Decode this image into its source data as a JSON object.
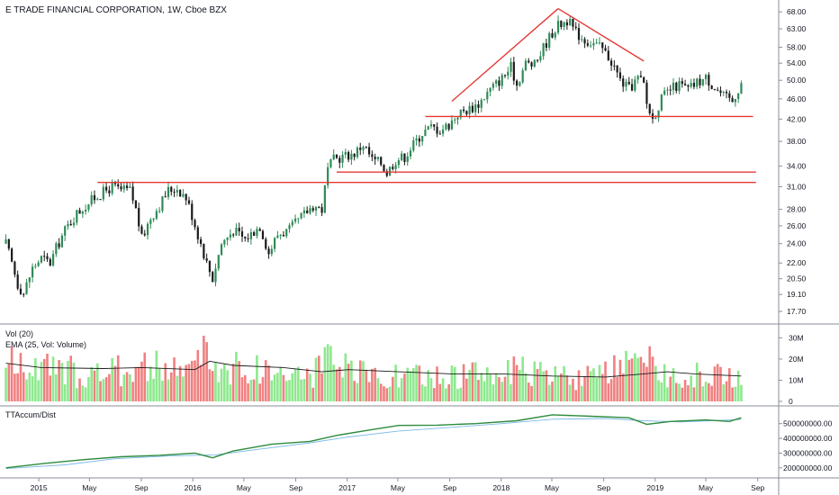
{
  "chart_data": [
    {
      "type": "candlestick",
      "title": "E TRADE FINANCIAL CORPORATION, 1W, Cboe BZX",
      "y_scale": "log",
      "ylim": [
        17.0,
        70.0
      ],
      "y_ticks": [
        "68.00",
        "63.00",
        "58.00",
        "54.00",
        "50.00",
        "46.00",
        "42.00",
        "38.00",
        "34.00",
        "31.00",
        "28.00",
        "26.00",
        "24.00",
        "22.00",
        "20.50",
        "19.10",
        "17.70"
      ],
      "x_ticks": [
        "2015",
        "May",
        "Sep",
        "2016",
        "May",
        "Sep",
        "2017",
        "May",
        "Sep",
        "2018",
        "May",
        "Sep",
        "2019",
        "May",
        "Sep"
      ],
      "price_path": [
        [
          "2014-10-15",
          24.0
        ],
        [
          "2014-10-29",
          22.0
        ],
        [
          "2014-11-12",
          20.0
        ],
        [
          "2014-11-26",
          19.2
        ],
        [
          "2014-12-17",
          21.5
        ],
        [
          "2015-01-07",
          22.5
        ],
        [
          "2015-01-28",
          22.0
        ],
        [
          "2015-02-11",
          23.5
        ],
        [
          "2015-03-04",
          25.5
        ],
        [
          "2015-04-01",
          27.5
        ],
        [
          "2015-04-22",
          28.5
        ],
        [
          "2015-05-13",
          29.5
        ],
        [
          "2015-06-10",
          30.5
        ],
        [
          "2015-06-24",
          31.0
        ],
        [
          "2015-07-15",
          30.5
        ],
        [
          "2015-08-05",
          30.5
        ],
        [
          "2015-08-19",
          28.0
        ],
        [
          "2015-09-02",
          24.5
        ],
        [
          "2015-09-23",
          27.0
        ],
        [
          "2015-10-14",
          28.5
        ],
        [
          "2015-11-04",
          30.5
        ],
        [
          "2015-11-25",
          30.8
        ],
        [
          "2015-12-16",
          29.5
        ],
        [
          "2016-01-13",
          25.0
        ],
        [
          "2016-02-03",
          22.0
        ],
        [
          "2016-02-17",
          20.5
        ],
        [
          "2016-03-09",
          24.0
        ],
        [
          "2016-04-06",
          25.5
        ],
        [
          "2016-05-04",
          24.5
        ],
        [
          "2016-06-08",
          26.0
        ],
        [
          "2016-06-29",
          23.0
        ],
        [
          "2016-07-20",
          25.0
        ],
        [
          "2016-08-17",
          25.5
        ],
        [
          "2016-09-14",
          27.0
        ],
        [
          "2016-10-12",
          28.5
        ],
        [
          "2016-11-02",
          28.0
        ],
        [
          "2016-11-16",
          33.5
        ],
        [
          "2016-11-30",
          35.0
        ],
        [
          "2016-12-21",
          35.5
        ],
        [
          "2017-01-18",
          36.0
        ],
        [
          "2017-02-08",
          37.5
        ],
        [
          "2017-03-01",
          35.0
        ],
        [
          "2017-03-22",
          34.5
        ],
        [
          "2017-04-05",
          33.0
        ],
        [
          "2017-04-26",
          35.0
        ],
        [
          "2017-05-17",
          35.5
        ],
        [
          "2017-06-07",
          37.5
        ],
        [
          "2017-06-28",
          39.5
        ],
        [
          "2017-07-19",
          40.5
        ],
        [
          "2017-08-09",
          40.0
        ],
        [
          "2017-08-30",
          41.0
        ],
        [
          "2017-09-20",
          43.0
        ],
        [
          "2017-10-18",
          44.0
        ],
        [
          "2017-11-08",
          45.0
        ],
        [
          "2017-12-06",
          48.0
        ],
        [
          "2018-01-03",
          50.5
        ],
        [
          "2018-01-24",
          53.0
        ],
        [
          "2018-02-07",
          49.0
        ],
        [
          "2018-02-28",
          54.0
        ],
        [
          "2018-03-21",
          53.5
        ],
        [
          "2018-04-11",
          58.0
        ],
        [
          "2018-05-02",
          62.0
        ],
        [
          "2018-05-16",
          64.0
        ],
        [
          "2018-06-06",
          65.5
        ],
        [
          "2018-06-27",
          62.0
        ],
        [
          "2018-07-18",
          60.0
        ],
        [
          "2018-08-08",
          59.0
        ],
        [
          "2018-08-29",
          57.5
        ],
        [
          "2018-09-19",
          54.5
        ],
        [
          "2018-10-10",
          50.0
        ],
        [
          "2018-10-31",
          48.0
        ],
        [
          "2018-11-21",
          50.5
        ],
        [
          "2018-12-05",
          49.0
        ],
        [
          "2018-12-12",
          45.0
        ],
        [
          "2018-12-26",
          42.0
        ],
        [
          "2019-01-16",
          46.0
        ],
        [
          "2019-02-06",
          48.0
        ],
        [
          "2019-02-27",
          49.0
        ],
        [
          "2019-03-20",
          48.0
        ],
        [
          "2019-04-10",
          49.5
        ],
        [
          "2019-05-01",
          50.5
        ],
        [
          "2019-05-22",
          48.5
        ],
        [
          "2019-06-12",
          46.5
        ],
        [
          "2019-07-03",
          45.5
        ],
        [
          "2019-07-24",
          49.5
        ]
      ],
      "drawings": [
        {
          "kind": "line",
          "from": [
            "2017-09-06",
            45.5
          ],
          "to": [
            "2018-05-16",
            69.0
          ]
        },
        {
          "kind": "line",
          "from": [
            "2018-05-16",
            69.0
          ],
          "to": [
            "2018-12-05",
            54.5
          ]
        },
        {
          "kind": "horizontal",
          "from": "2015-05-20",
          "to": "2019-08-28",
          "value": 31.6
        },
        {
          "kind": "horizontal",
          "from": "2016-12-07",
          "to": "2019-08-28",
          "value": 33.1
        },
        {
          "kind": "horizontal",
          "from": "2017-07-05",
          "to": "2019-08-21",
          "value": 42.5
        }
      ],
      "bull_color": "#2e8b57",
      "bear_color": "#1b1b1b",
      "drawing_color": "#e53935"
    },
    {
      "type": "bar",
      "labels": [
        "Vol (20)",
        "EMA (25, Vol: Volume)"
      ],
      "ylim": [
        0,
        34
      ],
      "y_ticks": [
        "30M",
        "20M",
        "10M",
        "0"
      ],
      "volume_path_M": [
        [
          "2014-10-15",
          18
        ],
        [
          "2015-01-07",
          15
        ],
        [
          "2015-06-03",
          13
        ],
        [
          "2015-08-26",
          17
        ],
        [
          "2015-12-02",
          14
        ],
        [
          "2016-01-27",
          22
        ],
        [
          "2016-03-02",
          16
        ],
        [
          "2016-06-29",
          15
        ],
        [
          "2016-10-05",
          12
        ],
        [
          "2016-11-16",
          18
        ],
        [
          "2017-01-25",
          13
        ],
        [
          "2017-04-26",
          12
        ],
        [
          "2017-08-02",
          11
        ],
        [
          "2017-10-25",
          13
        ],
        [
          "2018-02-07",
          14
        ],
        [
          "2018-05-02",
          12
        ],
        [
          "2018-08-01",
          11
        ],
        [
          "2018-10-31",
          16
        ],
        [
          "2018-12-12",
          18
        ],
        [
          "2019-01-30",
          13
        ],
        [
          "2019-04-24",
          12
        ],
        [
          "2019-07-24",
          13
        ]
      ],
      "ema_path_M": [
        [
          "2014-10-15",
          18
        ],
        [
          "2015-01-07",
          16
        ],
        [
          "2015-06-03",
          15.5
        ],
        [
          "2015-09-02",
          16
        ],
        [
          "2016-01-06",
          15
        ],
        [
          "2016-02-10",
          19
        ],
        [
          "2016-04-06",
          17
        ],
        [
          "2016-08-03",
          16
        ],
        [
          "2016-11-02",
          14
        ],
        [
          "2017-01-04",
          15
        ],
        [
          "2017-05-03",
          14
        ],
        [
          "2017-09-06",
          13
        ],
        [
          "2018-01-03",
          13
        ],
        [
          "2018-05-02",
          12
        ],
        [
          "2018-09-05",
          11.5
        ],
        [
          "2018-12-05",
          13
        ],
        [
          "2019-01-30",
          14
        ],
        [
          "2019-04-03",
          13
        ],
        [
          "2019-07-24",
          12
        ]
      ],
      "up_color": "#8ee88e",
      "down_color": "#f08080",
      "ema_color": "#1b1b1b"
    },
    {
      "type": "line",
      "label": "TTAccum/Dist",
      "ylim": [
        150000000,
        590000000
      ],
      "y_ticks": [
        "500000000.00",
        "400000000.00",
        "300000000.00",
        "200000000.00"
      ],
      "series": [
        {
          "color": "#2e8b3d",
          "points": [
            [
              "2014-10-15",
              200000000
            ],
            [
              "2015-01-14",
              230000000
            ],
            [
              "2015-04-15",
              255000000
            ],
            [
              "2015-07-15",
              275000000
            ],
            [
              "2015-10-14",
              285000000
            ],
            [
              "2016-01-06",
              300000000
            ],
            [
              "2016-02-17",
              268000000
            ],
            [
              "2016-04-06",
              315000000
            ],
            [
              "2016-07-06",
              360000000
            ],
            [
              "2016-10-05",
              380000000
            ],
            [
              "2016-12-07",
              420000000
            ],
            [
              "2017-03-01",
              460000000
            ],
            [
              "2017-05-03",
              488000000
            ],
            [
              "2017-08-02",
              490000000
            ],
            [
              "2017-11-01",
              500000000
            ],
            [
              "2018-02-07",
              520000000
            ],
            [
              "2018-05-02",
              560000000
            ],
            [
              "2018-08-01",
              550000000
            ],
            [
              "2018-10-31",
              540000000
            ],
            [
              "2018-12-12",
              495000000
            ],
            [
              "2019-02-06",
              515000000
            ],
            [
              "2019-05-01",
              525000000
            ],
            [
              "2019-06-26",
              515000000
            ],
            [
              "2019-07-24",
              540000000
            ]
          ]
        },
        {
          "color": "#7cb9e8",
          "points": [
            [
              "2014-10-15",
              195000000
            ],
            [
              "2015-03-04",
              220000000
            ],
            [
              "2015-07-01",
              262000000
            ],
            [
              "2015-11-04",
              280000000
            ],
            [
              "2016-02-24",
              288000000
            ],
            [
              "2016-06-01",
              325000000
            ],
            [
              "2016-10-05",
              370000000
            ],
            [
              "2017-01-04",
              410000000
            ],
            [
              "2017-05-03",
              450000000
            ],
            [
              "2017-09-06",
              475000000
            ],
            [
              "2018-01-03",
              500000000
            ],
            [
              "2018-05-02",
              530000000
            ],
            [
              "2018-09-05",
              535000000
            ],
            [
              "2018-12-05",
              520000000
            ],
            [
              "2019-03-06",
              512000000
            ],
            [
              "2019-07-24",
              528000000
            ]
          ]
        }
      ]
    }
  ],
  "x_axis": {
    "start": "2014-10-01",
    "end": "2019-10-10"
  }
}
